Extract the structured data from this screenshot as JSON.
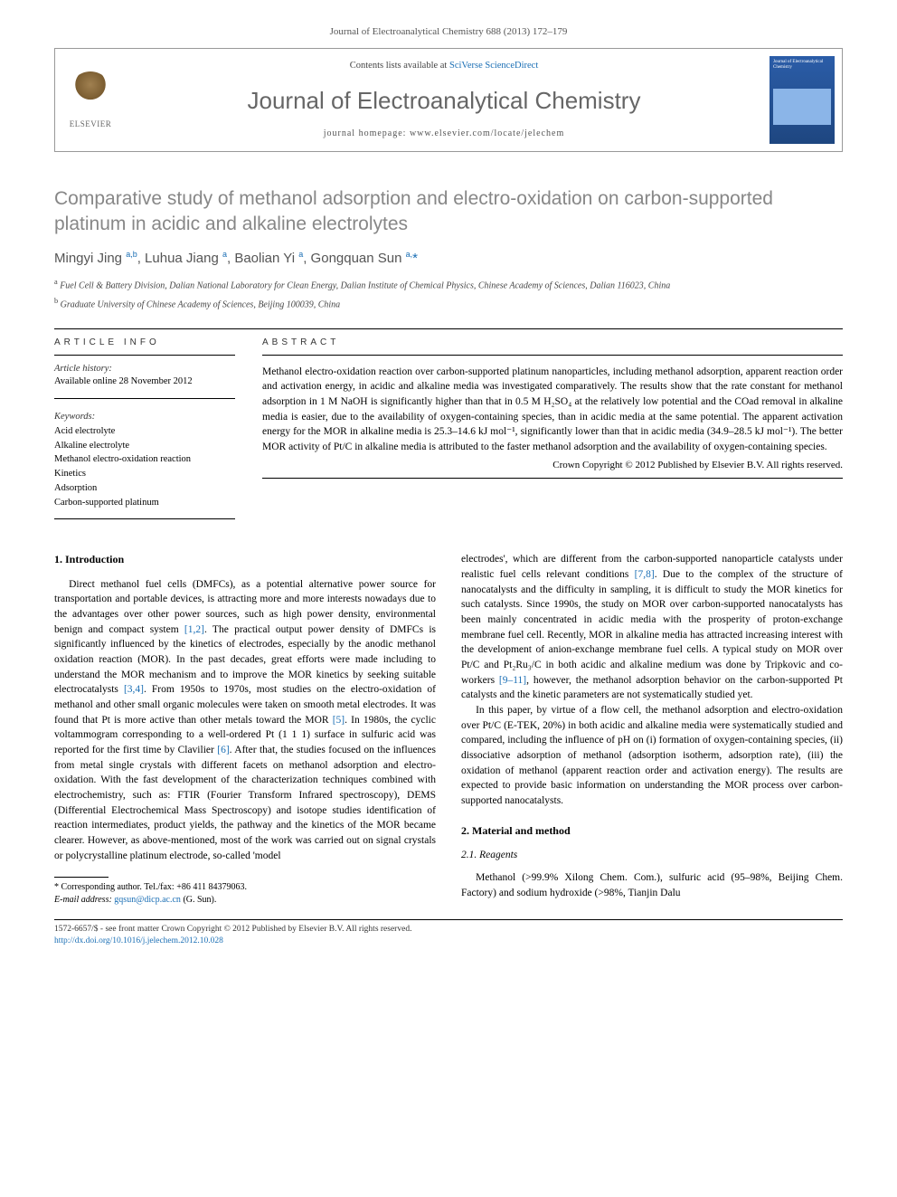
{
  "journal_ref": "Journal of Electroanalytical Chemistry 688 (2013) 172–179",
  "header": {
    "contents_prefix": "Contents lists available at ",
    "contents_link": "SciVerse ScienceDirect",
    "journal_title": "Journal of Electroanalytical Chemistry",
    "homepage_prefix": "journal homepage: ",
    "homepage_url": "www.elsevier.com/locate/jelechem",
    "elsevier_label": "ELSEVIER",
    "cover_text": "Journal of Electroanalytical Chemistry"
  },
  "title": "Comparative study of methanol adsorption and electro-oxidation on carbon-supported platinum in acidic and alkaline electrolytes",
  "authors_html": "Mingyi Jing <sup>a,b</sup>, Luhua Jiang <sup>a</sup>, Baolian Yi <sup>a</sup>, Gongquan Sun <sup>a,</sup><span class='star'>*</span>",
  "affiliations": {
    "a": "Fuel Cell & Battery Division, Dalian National Laboratory for Clean Energy, Dalian Institute of Chemical Physics, Chinese Academy of Sciences, Dalian 116023, China",
    "b": "Graduate University of Chinese Academy of Sciences, Beijing 100039, China"
  },
  "article_info": {
    "heading": "ARTICLE INFO",
    "history_label": "Article history:",
    "history_value": "Available online 28 November 2012",
    "keywords_label": "Keywords:",
    "keywords": [
      "Acid electrolyte",
      "Alkaline electrolyte",
      "Methanol electro-oxidation reaction",
      "Kinetics",
      "Adsorption",
      "Carbon-supported platinum"
    ]
  },
  "abstract": {
    "heading": "ABSTRACT",
    "body": "Methanol electro-oxidation reaction over carbon-supported platinum nanoparticles, including methanol adsorption, apparent reaction order and activation energy, in acidic and alkaline media was investigated comparatively. The results show that the rate constant for methanol adsorption in 1 M NaOH is significantly higher than that in 0.5 M H₂SO₄ at the relatively low potential and the COad removal in alkaline media is easier, due to the availability of oxygen-containing species, than in acidic media at the same potential. The apparent activation energy for the MOR in alkaline media is 25.3–14.6 kJ mol⁻¹, significantly lower than that in acidic media (34.9–28.5 kJ mol⁻¹). The better MOR activity of Pt/C in alkaline media is attributed to the faster methanol adsorption and the availability of oxygen-containing species.",
    "copyright": "Crown Copyright © 2012 Published by Elsevier B.V. All rights reserved."
  },
  "sections": {
    "intro_heading": "1. Introduction",
    "intro_p1": "Direct methanol fuel cells (DMFCs), as a potential alternative power source for transportation and portable devices, is attracting more and more interests nowadays due to the advantages over other power sources, such as high power density, environmental benign and compact system [1,2]. The practical output power density of DMFCs is significantly influenced by the kinetics of electrodes, especially by the anodic methanol oxidation reaction (MOR). In the past decades, great efforts were made including to understand the MOR mechanism and to improve the MOR kinetics by seeking suitable electrocatalysts [3,4]. From 1950s to 1970s, most studies on the electro-oxidation of methanol and other small organic molecules were taken on smooth metal electrodes. It was found that Pt is more active than other metals toward the MOR [5]. In 1980s, the cyclic voltammogram corresponding to a well-ordered Pt (1 1 1) surface in sulfuric acid was reported for the first time by Clavilier [6]. After that, the studies focused on the influences from metal single crystals with different facets on methanol adsorption and electro-oxidation. With the fast development of the characterization techniques combined with electrochemistry, such as: FTIR (Fourier Transform Infrared spectroscopy), DEMS (Differential Electrochemical Mass Spectroscopy) and isotope studies identification of reaction intermediates, product yields, the pathway and the kinetics of the MOR became clearer. However, as above-mentioned, most of the work was carried out on signal crystals or polycrystalline platinum electrode, so-called 'model",
    "intro_p2": "electrodes', which are different from the carbon-supported nanoparticle catalysts under realistic fuel cells relevant conditions [7,8]. Due to the complex of the structure of nanocatalysts and the difficulty in sampling, it is difficult to study the MOR kinetics for such catalysts. Since 1990s, the study on MOR over carbon-supported nanocatalysts has been mainly concentrated in acidic media with the prosperity of proton-exchange membrane fuel cell. Recently, MOR in alkaline media has attracted increasing interest with the development of anion-exchange membrane fuel cells. A typical study on MOR over Pt/C and Pt₂Ru₃/C in both acidic and alkaline medium was done by Tripkovic and co-workers [9–11], however, the methanol adsorption behavior on the carbon-supported Pt catalysts and the kinetic parameters are not systematically studied yet.",
    "intro_p3": "In this paper, by virtue of a flow cell, the methanol adsorption and electro-oxidation over Pt/C (E-TEK, 20%) in both acidic and alkaline media were systematically studied and compared, including the influence of pH on (i) formation of oxygen-containing species, (ii) dissociative adsorption of methanol (adsorption isotherm, adsorption rate), (iii) the oxidation of methanol (apparent reaction order and activation energy). The results are expected to provide basic information on understanding the MOR process over carbon-supported nanocatalysts.",
    "materials_heading": "2. Material and method",
    "reagents_heading": "2.1. Reagents",
    "reagents_p": "Methanol (>99.9% Xilong Chem. Com.), sulfuric acid (95–98%, Beijing Chem. Factory) and sodium hydroxide (>98%, Tianjin Dalu"
  },
  "footnote": {
    "corr": "* Corresponding author. Tel./fax: +86 411 84379063.",
    "email_label": "E-mail address: ",
    "email": "gqsun@dicp.ac.cn",
    "email_suffix": " (G. Sun)."
  },
  "footer": {
    "line1": "1572-6657/$ - see front matter Crown Copyright © 2012 Published by Elsevier B.V. All rights reserved.",
    "doi": "http://dx.doi.org/10.1016/j.jelechem.2012.10.028"
  },
  "colors": {
    "link": "#1b6fb5",
    "grey_title": "#878787",
    "text": "#000000"
  }
}
